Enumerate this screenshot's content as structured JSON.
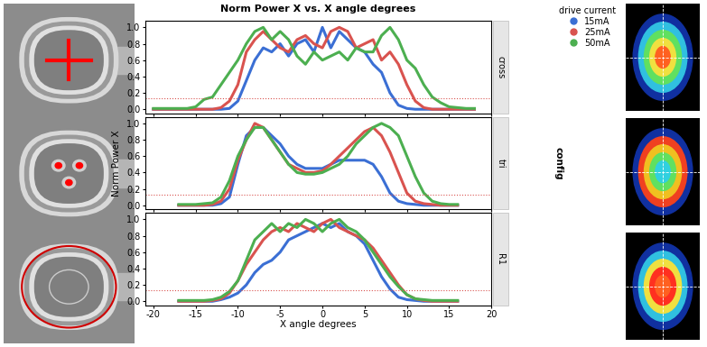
{
  "chart_data": {
    "type": "line",
    "title": "Norm Power X vs. X angle degrees",
    "x_label": "X angle degrees",
    "y_label": "Norm Power X",
    "legend_title": "drive current",
    "facet_label": "config",
    "legend": "upper right",
    "grid": false,
    "reference_line": 0.13,
    "reference_color": "#d9534f",
    "xlim": [
      -21,
      20
    ],
    "xticks": [
      -20,
      -15,
      -10,
      -5,
      0,
      5,
      10,
      15,
      20
    ],
    "ylim": [
      -0.05,
      1.08
    ],
    "yticks": [
      {
        "value": 0,
        "label": "0.0"
      },
      {
        "value": 0.2,
        "label": "0.2"
      },
      {
        "value": 0.4,
        "label": "0.4"
      },
      {
        "value": 0.6,
        "label": "0.6"
      },
      {
        "value": 0.8,
        "label": "0.8"
      },
      {
        "value": 1.0,
        "label": "1.0"
      }
    ],
    "panels": [
      {
        "name": "cross",
        "x": [
          -20,
          -19,
          -18,
          -17,
          -16,
          -15,
          -14,
          -13,
          -12,
          -11,
          -10,
          -9,
          -8,
          -7,
          -6,
          -5,
          -4,
          -3,
          -2,
          -1,
          0,
          1,
          2,
          3,
          4,
          5,
          6,
          7,
          8,
          9,
          10,
          11,
          12,
          13,
          14,
          15,
          16,
          17,
          18
        ],
        "series": [
          {
            "name": "15mA",
            "color": "#3b6fd4",
            "values": [
              0,
              0,
              0,
              0,
              0,
              0,
              0,
              0,
              0,
              0.01,
              0.1,
              0.35,
              0.6,
              0.75,
              0.7,
              0.8,
              0.65,
              0.8,
              0.85,
              0.7,
              1.0,
              0.75,
              0.95,
              0.85,
              0.75,
              0.7,
              0.55,
              0.45,
              0.2,
              0.05,
              0.01,
              0,
              0,
              0,
              0,
              0,
              0,
              0,
              0
            ]
          },
          {
            "name": "25mA",
            "color": "#d9534f",
            "values": [
              0,
              0,
              0,
              0,
              0,
              0,
              0,
              0,
              0.02,
              0.1,
              0.3,
              0.7,
              0.85,
              0.95,
              0.85,
              0.75,
              0.7,
              0.85,
              0.9,
              0.8,
              0.75,
              0.95,
              1.0,
              0.95,
              0.75,
              0.8,
              0.85,
              0.6,
              0.7,
              0.55,
              0.3,
              0.1,
              0.02,
              0,
              0,
              0,
              0,
              0,
              0
            ]
          },
          {
            "name": "50mA",
            "color": "#4caf50",
            "values": [
              0.01,
              0.01,
              0.01,
              0.01,
              0.01,
              0.03,
              0.12,
              0.15,
              0.3,
              0.45,
              0.6,
              0.8,
              0.95,
              1.0,
              0.85,
              0.95,
              0.85,
              0.65,
              0.55,
              0.7,
              0.6,
              0.65,
              0.7,
              0.6,
              0.75,
              0.7,
              0.7,
              0.9,
              1.0,
              0.85,
              0.6,
              0.5,
              0.3,
              0.15,
              0.08,
              0.03,
              0.02,
              0.01,
              0.01
            ]
          }
        ]
      },
      {
        "name": "tri",
        "x": [
          -17,
          -16,
          -15,
          -14,
          -13,
          -12,
          -11,
          -10,
          -9,
          -8,
          -7,
          -6,
          -5,
          -4,
          -3,
          -2,
          -1,
          0,
          1,
          2,
          3,
          4,
          5,
          6,
          7,
          8,
          9,
          10,
          11,
          12,
          13,
          14,
          15,
          16
        ],
        "series": [
          {
            "name": "15mA",
            "color": "#3b6fd4",
            "values": [
              0,
              0,
              0,
              0,
              0,
              0.02,
              0.1,
              0.5,
              0.85,
              0.95,
              0.95,
              0.85,
              0.75,
              0.6,
              0.5,
              0.45,
              0.45,
              0.45,
              0.5,
              0.55,
              0.55,
              0.55,
              0.55,
              0.5,
              0.35,
              0.15,
              0.05,
              0.02,
              0.01,
              0,
              0,
              0,
              0,
              0
            ]
          },
          {
            "name": "25mA",
            "color": "#d9534f",
            "values": [
              0,
              0,
              0,
              0,
              0.01,
              0.05,
              0.2,
              0.55,
              0.8,
              1.0,
              0.95,
              0.8,
              0.65,
              0.5,
              0.45,
              0.4,
              0.4,
              0.42,
              0.5,
              0.6,
              0.7,
              0.8,
              0.9,
              0.95,
              0.85,
              0.65,
              0.4,
              0.15,
              0.05,
              0.02,
              0.01,
              0,
              0,
              0
            ]
          },
          {
            "name": "50mA",
            "color": "#4caf50",
            "values": [
              0.01,
              0.01,
              0.01,
              0.02,
              0.03,
              0.1,
              0.3,
              0.6,
              0.8,
              0.95,
              0.95,
              0.8,
              0.65,
              0.5,
              0.4,
              0.38,
              0.38,
              0.4,
              0.45,
              0.5,
              0.6,
              0.75,
              0.85,
              0.95,
              1.0,
              0.95,
              0.85,
              0.6,
              0.35,
              0.15,
              0.05,
              0.02,
              0.01,
              0.01
            ]
          }
        ]
      },
      {
        "name": "R1",
        "x": [
          -17,
          -16,
          -15,
          -14,
          -13,
          -12,
          -11,
          -10,
          -9,
          -8,
          -7,
          -6,
          -5,
          -4,
          -3,
          -2,
          -1,
          0,
          1,
          2,
          3,
          4,
          5,
          6,
          7,
          8,
          9,
          10,
          11,
          12,
          13,
          14,
          15,
          16
        ],
        "series": [
          {
            "name": "15mA",
            "color": "#3b6fd4",
            "values": [
              0,
              0,
              0,
              0,
              0,
              0.02,
              0.05,
              0.1,
              0.2,
              0.35,
              0.45,
              0.5,
              0.6,
              0.75,
              0.8,
              0.85,
              0.9,
              0.95,
              0.9,
              0.95,
              0.85,
              0.8,
              0.7,
              0.5,
              0.3,
              0.15,
              0.05,
              0.02,
              0.01,
              0,
              0,
              0,
              0,
              0
            ]
          },
          {
            "name": "25mA",
            "color": "#d9534f",
            "values": [
              0,
              0,
              0,
              0,
              0.01,
              0.03,
              0.1,
              0.25,
              0.45,
              0.6,
              0.75,
              0.85,
              0.9,
              0.85,
              0.95,
              0.9,
              0.85,
              0.95,
              1.0,
              0.9,
              0.85,
              0.8,
              0.75,
              0.65,
              0.5,
              0.35,
              0.2,
              0.08,
              0.03,
              0.01,
              0,
              0,
              0,
              0
            ]
          },
          {
            "name": "50mA",
            "color": "#4caf50",
            "values": [
              0.01,
              0.01,
              0.01,
              0.01,
              0.02,
              0.05,
              0.12,
              0.25,
              0.5,
              0.75,
              0.85,
              0.95,
              0.85,
              0.95,
              0.9,
              1.0,
              0.95,
              0.85,
              0.95,
              1.0,
              0.9,
              0.85,
              0.75,
              0.6,
              0.45,
              0.3,
              0.18,
              0.08,
              0.03,
              0.02,
              0.01,
              0.01,
              0.01,
              0.01
            ]
          }
        ]
      }
    ]
  }
}
